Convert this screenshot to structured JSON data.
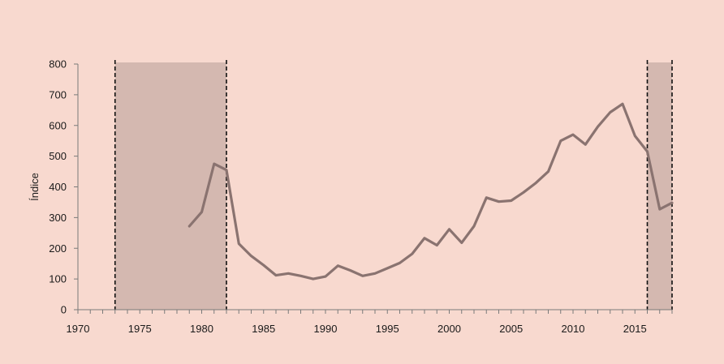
{
  "colors": {
    "background": "#f8d9cf",
    "line": "#8a7370",
    "shade": "#d4b8b0",
    "axis": "#7a7a7a",
    "dashed": "#111111"
  },
  "chart_data": {
    "type": "line",
    "title": "",
    "xlabel": "",
    "ylabel": "Índice",
    "xlim": [
      1970,
      2018
    ],
    "ylim": [
      0,
      800
    ],
    "x_ticks": [
      1970,
      1975,
      1980,
      1985,
      1990,
      1995,
      2000,
      2005,
      2010,
      2015
    ],
    "y_ticks": [
      0,
      100,
      200,
      300,
      400,
      500,
      600,
      700,
      800
    ],
    "grid": false,
    "shaded_periods": [
      {
        "start": 1973,
        "end": 1982
      },
      {
        "start": 2016,
        "end": 2018
      }
    ],
    "series": [
      {
        "x": [
          1979,
          1980,
          1981,
          1982,
          1983,
          1984,
          1985,
          1986,
          1987,
          1988,
          1989,
          1990,
          1991,
          1992,
          1993,
          1994,
          1995,
          1996,
          1997,
          1998,
          1999,
          2000,
          2001,
          2002,
          2003,
          2004,
          2005,
          2006,
          2007,
          2008,
          2009,
          2010,
          2011,
          2012,
          2013,
          2014,
          2015,
          2016,
          2017,
          2018
        ],
        "values": [
          272,
          318,
          475,
          455,
          215,
          175,
          145,
          112,
          118,
          110,
          100,
          108,
          143,
          128,
          110,
          118,
          135,
          152,
          182,
          233,
          210,
          262,
          218,
          272,
          365,
          352,
          355,
          382,
          413,
          450,
          550,
          570,
          538,
          596,
          643,
          670,
          566,
          515,
          327,
          348
        ]
      }
    ]
  }
}
